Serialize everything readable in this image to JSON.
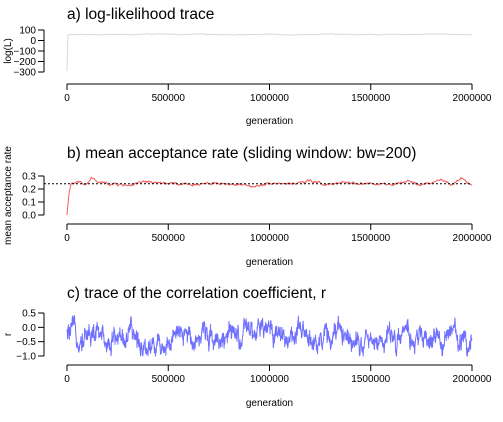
{
  "chart_data": [
    {
      "type": "line",
      "title": "a) log-likelihood trace",
      "xlabel": "generation",
      "ylabel": "log(L)",
      "xlim": [
        0,
        2000000
      ],
      "ylim": [
        -300,
        100
      ],
      "x_ticks": [
        0,
        500000,
        1000000,
        1500000,
        2000000
      ],
      "x_tick_labels": [
        "0",
        "500000",
        "1000000",
        "1500000",
        "2000000"
      ],
      "y_ticks": [
        -300,
        -200,
        -100,
        0,
        100
      ],
      "y_tick_labels": [
        "−300",
        "−200",
        "−100",
        "0",
        "100"
      ],
      "series": [
        {
          "color": "#d9d9d9",
          "x": [
            0,
            1000,
            5000,
            100000,
            200000,
            300000,
            400000,
            500000,
            600000,
            700000,
            800000,
            900000,
            1000000,
            1100000,
            1200000,
            1300000,
            1400000,
            1500000,
            1600000,
            1700000,
            1800000,
            1900000,
            2000000
          ],
          "y": [
            -290,
            30,
            55,
            57,
            59,
            56,
            58,
            60,
            57,
            59,
            58,
            56,
            59,
            57,
            58,
            60,
            57,
            58,
            56,
            60,
            63,
            58,
            57
          ]
        }
      ]
    },
    {
      "type": "line",
      "title": "b) mean acceptance rate (sliding window: bw=200)",
      "xlabel": "generation",
      "ylabel": "mean acceptance rate",
      "xlim": [
        0,
        2000000
      ],
      "ylim": [
        0,
        0.3
      ],
      "x_ticks": [
        0,
        500000,
        1000000,
        1500000,
        2000000
      ],
      "x_tick_labels": [
        "0",
        "500000",
        "1000000",
        "1500000",
        "2000000"
      ],
      "y_ticks": [
        0,
        0.1,
        0.2,
        0.3
      ],
      "y_tick_labels": [
        "0.0",
        "0.1",
        "0.2",
        "0.3"
      ],
      "reference_line": {
        "y": 0.24,
        "style": "dotted",
        "color": "#000000"
      },
      "series": [
        {
          "color": "#f06060",
          "x": [
            0,
            10000,
            20000,
            50000,
            100000,
            120000,
            150000,
            200000,
            300000,
            400000,
            500000,
            600000,
            700000,
            800000,
            900000,
            1000000,
            1100000,
            1200000,
            1300000,
            1400000,
            1500000,
            1600000,
            1700000,
            1800000,
            1850000,
            1900000,
            1950000,
            2000000
          ],
          "y": [
            0.0,
            0.18,
            0.23,
            0.25,
            0.24,
            0.29,
            0.25,
            0.24,
            0.23,
            0.25,
            0.24,
            0.23,
            0.25,
            0.24,
            0.22,
            0.25,
            0.24,
            0.26,
            0.23,
            0.25,
            0.24,
            0.23,
            0.25,
            0.24,
            0.27,
            0.23,
            0.28,
            0.23
          ]
        }
      ]
    },
    {
      "type": "line",
      "title": "c) trace of the correlation coefficient, r",
      "xlabel": "generation",
      "ylabel": "r",
      "xlim": [
        0,
        2000000
      ],
      "ylim": [
        -1.0,
        0.5
      ],
      "x_ticks": [
        0,
        500000,
        1000000,
        1500000,
        2000000
      ],
      "x_tick_labels": [
        "0",
        "500000",
        "1000000",
        "1500000",
        "2000000"
      ],
      "y_ticks": [
        -1.0,
        -0.5,
        0.0,
        0.5
      ],
      "y_tick_labels": [
        "−1.0",
        "−0.5",
        "0.0",
        "0.5"
      ],
      "series": [
        {
          "color": "#7070ff",
          "x": [
            0,
            100000,
            200000,
            300000,
            400000,
            500000,
            600000,
            700000,
            800000,
            900000,
            1000000,
            1100000,
            1200000,
            1300000,
            1400000,
            1500000,
            1600000,
            1700000,
            1800000,
            1900000,
            2000000
          ],
          "y": [
            -0.3,
            -0.2,
            -0.4,
            -0.3,
            -0.6,
            -0.5,
            -0.3,
            -0.2,
            -0.4,
            -0.3,
            -0.1,
            -0.3,
            -0.4,
            -0.3,
            -0.2,
            -0.6,
            -0.3,
            -0.4,
            -0.5,
            -0.3,
            -0.4
          ]
        }
      ]
    }
  ]
}
